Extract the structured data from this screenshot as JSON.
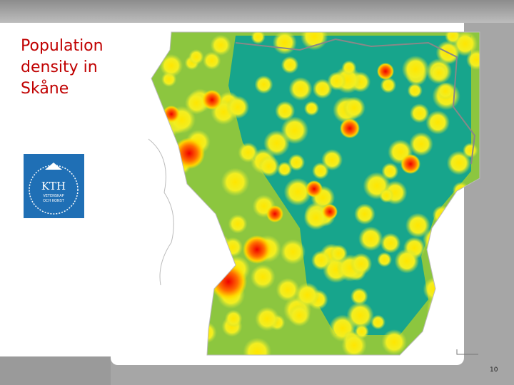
{
  "title": "Population density in Skåne",
  "logo": {
    "name": "KTH",
    "line1": "VETENSKAP",
    "line2": "OCH KONST"
  },
  "page_number": "10"
}
